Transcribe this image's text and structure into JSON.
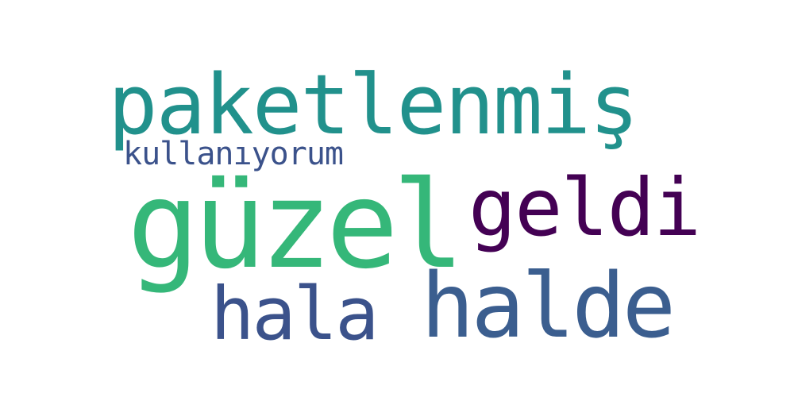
{
  "words": {
    "paketlenmis": {
      "text": "paketlenmiş",
      "color": "#21918c"
    },
    "kullaniyorum": {
      "text": "kullanıyorum",
      "color": "#3b528b"
    },
    "guzel": {
      "text": "güzel",
      "color": "#35b779"
    },
    "geldi": {
      "text": "geldi",
      "color": "#440154"
    },
    "hala": {
      "text": "hala",
      "color": "#3b528b"
    },
    "halde": {
      "text": "halde",
      "color": "#3b5e8f"
    }
  }
}
